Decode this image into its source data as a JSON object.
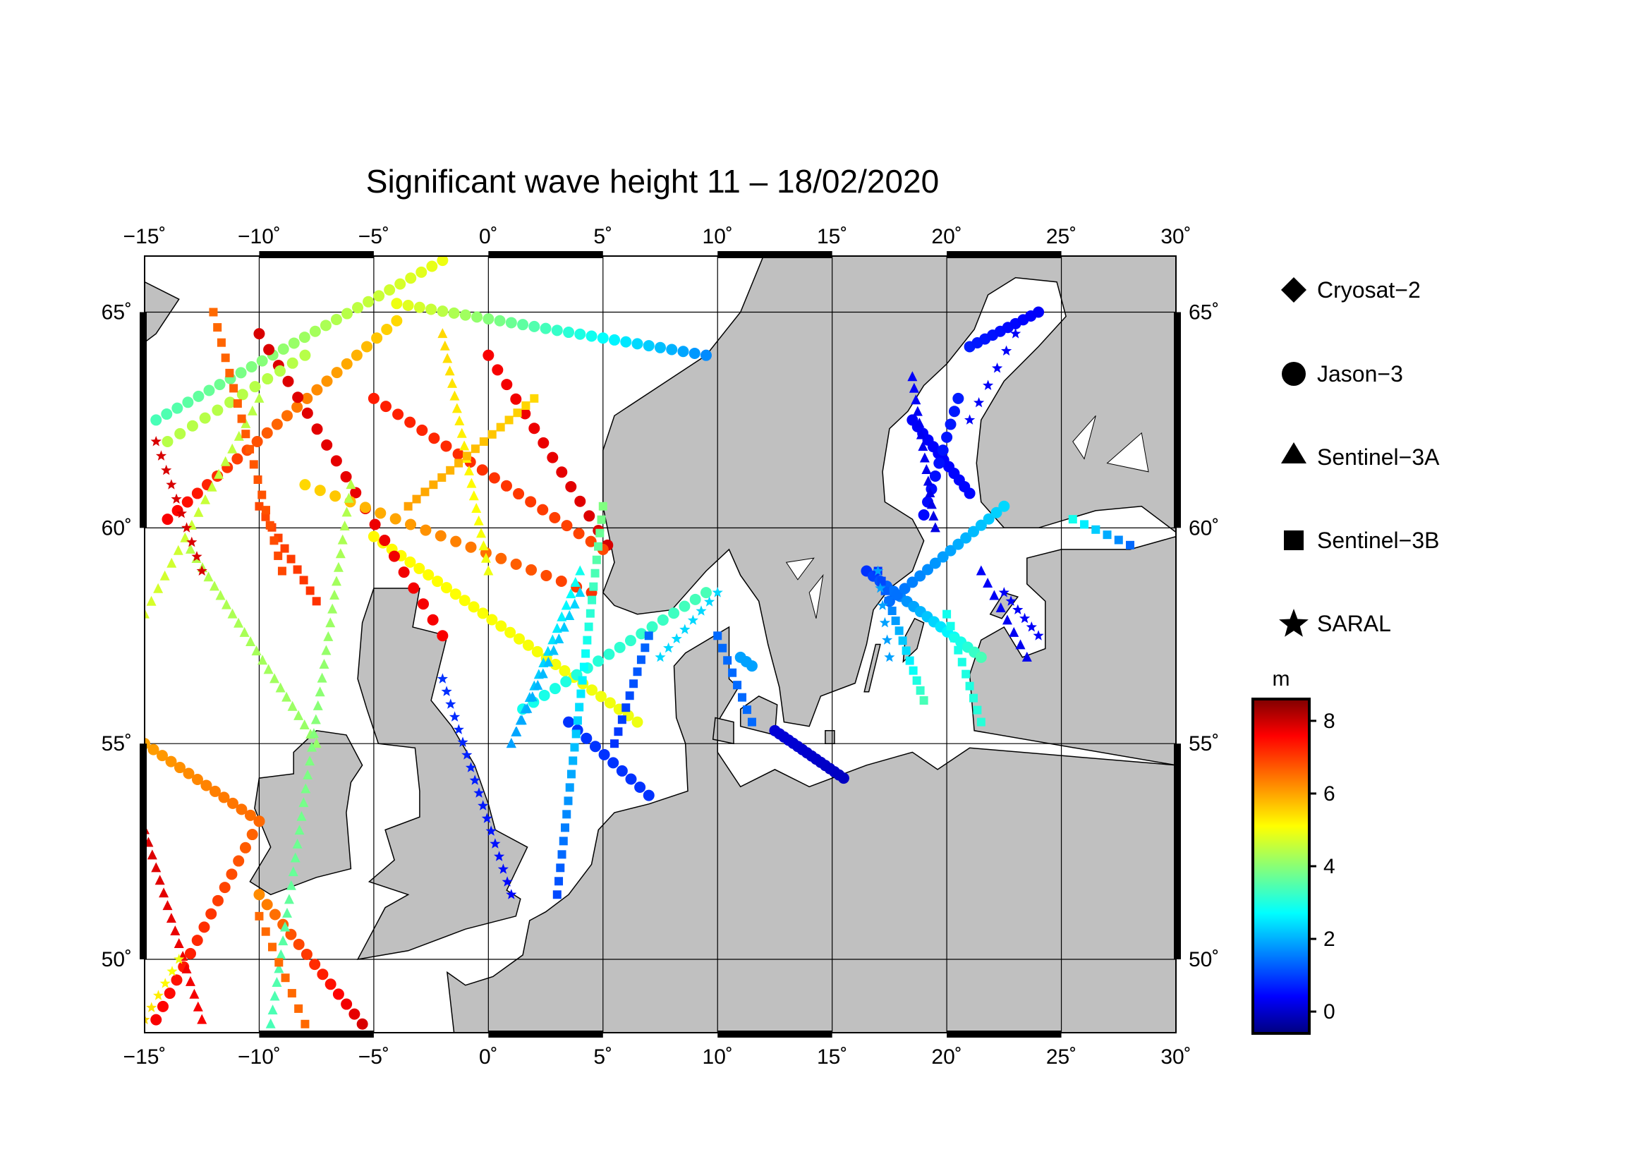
{
  "title": "Significant wave height 11 – 18/02/2020",
  "map": {
    "lon_range": [
      -15,
      30
    ],
    "lat_range": [
      48.3,
      66.3
    ],
    "lon_ticks": [
      -15,
      -10,
      -5,
      0,
      5,
      10,
      15,
      20,
      25,
      30
    ],
    "lon_tick_labels": [
      "−15˚",
      "−10˚",
      "−5˚",
      "0˚",
      "5˚",
      "10˚",
      "15˚",
      "20˚",
      "25˚",
      "30˚"
    ],
    "lat_ticks": [
      50,
      55,
      60,
      65
    ],
    "lat_tick_labels": [
      "50˚",
      "55˚",
      "60˚",
      "65˚"
    ],
    "land_color": "#c0c0c0",
    "sea_color": "#ffffff",
    "grid": true
  },
  "legend": {
    "items": [
      {
        "label": "Cryosat−2",
        "icon": "diamond-icon"
      },
      {
        "label": "Jason−3",
        "icon": "circle-icon"
      },
      {
        "label": "Sentinel−3A",
        "icon": "triangle-icon"
      },
      {
        "label": "Sentinel−3B",
        "icon": "square-icon"
      },
      {
        "label": "SARAL",
        "icon": "star-icon"
      }
    ]
  },
  "colorbar": {
    "unit": "m",
    "min": -0.6,
    "max": 8.6,
    "ticks": [
      0,
      2,
      4,
      6,
      8
    ],
    "tick_labels": [
      "0",
      "2",
      "4",
      "6",
      "8"
    ],
    "colormap": "jet"
  },
  "chart_data": {
    "type": "scatter",
    "title": "Significant wave height 11 – 18/02/2020",
    "value_unit": "m",
    "tracks": [
      {
        "satellite": "Jason-3",
        "start": [
          -15,
          55.0
        ],
        "end": [
          -10,
          53.2
        ],
        "h0": 6.0,
        "h1": 6.5,
        "n": 14
      },
      {
        "satellite": "Jason-3",
        "start": [
          -10,
          53.2
        ],
        "end": [
          -14.5,
          48.6
        ],
        "h0": 6.5,
        "h1": 7.5,
        "n": 16
      },
      {
        "satellite": "Jason-3",
        "start": [
          -10,
          51.5
        ],
        "end": [
          -5.5,
          48.5
        ],
        "h0": 6.2,
        "h1": 7.8,
        "n": 14
      },
      {
        "satellite": "Jason-3",
        "start": [
          -5,
          59.8
        ],
        "end": [
          6.5,
          55.5
        ],
        "h0": 5.2,
        "h1": 5.0,
        "n": 30
      },
      {
        "satellite": "Jason-3",
        "start": [
          -14,
          60.2
        ],
        "end": [
          -4,
          64.8
        ],
        "h0": 7.5,
        "h1": 5.5,
        "n": 24
      },
      {
        "satellite": "Jason-3",
        "start": [
          -4,
          65.2
        ],
        "end": [
          9.5,
          64.0
        ],
        "h0": 5.0,
        "h1": 1.8,
        "n": 28
      },
      {
        "satellite": "Jason-3",
        "start": [
          -14.5,
          62.5
        ],
        "end": [
          -2,
          66.2
        ],
        "h0": 3.5,
        "h1": 5.0,
        "n": 28
      },
      {
        "satellite": "Jason-3",
        "start": [
          -10,
          64.5
        ],
        "end": [
          -2,
          57.5
        ],
        "h0": 7.8,
        "h1": 7.5,
        "n": 20
      },
      {
        "satellite": "Jason-3",
        "start": [
          0,
          64.0
        ],
        "end": [
          5.2,
          59.6
        ],
        "h0": 7.5,
        "h1": 7.8,
        "n": 14
      },
      {
        "satellite": "Jason-3",
        "start": [
          -5,
          63.0
        ],
        "end": [
          5.0,
          59.5
        ],
        "h0": 7.2,
        "h1": 6.8,
        "n": 20
      },
      {
        "satellite": "Jason-3",
        "start": [
          -8,
          61.0
        ],
        "end": [
          4.5,
          58.5
        ],
        "h0": 5.5,
        "h1": 7.0,
        "n": 20
      },
      {
        "satellite": "Jason-3",
        "start": [
          -14,
          62.0
        ],
        "end": [
          -8,
          64.0
        ],
        "h0": 4.5,
        "h1": 4.5,
        "n": 12
      },
      {
        "satellite": "Jason-3",
        "start": [
          1.5,
          55.8
        ],
        "end": [
          9.5,
          58.5
        ],
        "h0": 3.0,
        "h1": 3.5,
        "n": 18
      },
      {
        "satellite": "Jason-3",
        "start": [
          11,
          57.0
        ],
        "end": [
          11.5,
          56.8
        ],
        "h0": 2.0,
        "h1": 2.0,
        "n": 3
      },
      {
        "satellite": "Jason-3",
        "start": [
          3.5,
          55.5
        ],
        "end": [
          7.0,
          53.8
        ],
        "h0": 1.0,
        "h1": 1.0,
        "n": 10
      },
      {
        "satellite": "Jason-3",
        "start": [
          12.5,
          55.3
        ],
        "end": [
          15.5,
          54.2
        ],
        "h0": 0.2,
        "h1": 0.0,
        "n": 16
      },
      {
        "satellite": "Jason-3",
        "start": [
          16.5,
          59.0
        ],
        "end": [
          21.5,
          57.0
        ],
        "h0": 1.0,
        "h1": 3.5,
        "n": 18
      },
      {
        "satellite": "Jason-3",
        "start": [
          17.5,
          58.3
        ],
        "end": [
          22.5,
          60.5
        ],
        "h0": 1.5,
        "h1": 2.5,
        "n": 16
      },
      {
        "satellite": "Jason-3",
        "start": [
          18.5,
          62.5
        ],
        "end": [
          21.0,
          60.8
        ],
        "h0": 0.5,
        "h1": 0.6,
        "n": 12
      },
      {
        "satellite": "Jason-3",
        "start": [
          21.0,
          64.2
        ],
        "end": [
          24.0,
          65.0
        ],
        "h0": 0.8,
        "h1": 0.5,
        "n": 10
      },
      {
        "satellite": "Jason-3",
        "start": [
          19.0,
          60.3
        ],
        "end": [
          20.5,
          63.0
        ],
        "h0": 0.6,
        "h1": 0.8,
        "n": 10
      },
      {
        "satellite": "Sentinel-3A",
        "start": [
          -13,
          59.5
        ],
        "end": [
          -7.5,
          55.0
        ],
        "h0": 4.5,
        "h1": 4.2,
        "n": 22
      },
      {
        "satellite": "Sentinel-3A",
        "start": [
          -15,
          53.0
        ],
        "end": [
          -12.5,
          48.6
        ],
        "h0": 7.8,
        "h1": 7.5,
        "n": 16
      },
      {
        "satellite": "Sentinel-3A",
        "start": [
          -6,
          61.0
        ],
        "end": [
          -9.5,
          48.5
        ],
        "h0": 4.5,
        "h1": 3.5,
        "n": 40
      },
      {
        "satellite": "Sentinel-3A",
        "start": [
          -2,
          64.5
        ],
        "end": [
          0,
          59.0
        ],
        "h0": 5.5,
        "h1": 5.0,
        "n": 20
      },
      {
        "satellite": "Sentinel-3A",
        "start": [
          1,
          55.0
        ],
        "end": [
          4,
          59.0
        ],
        "h0": 2.0,
        "h1": 3.0,
        "n": 16
      },
      {
        "satellite": "Sentinel-3A",
        "start": [
          4.0,
          58.5
        ],
        "end": [
          1.0,
          55.0
        ],
        "h0": 2.5,
        "h1": 2.0,
        "n": 14
      },
      {
        "satellite": "Sentinel-3A",
        "start": [
          -15,
          58.0
        ],
        "end": [
          -10,
          63.0
        ],
        "h0": 4.8,
        "h1": 4.5,
        "n": 18
      },
      {
        "satellite": "Sentinel-3A",
        "start": [
          19.5,
          60.0
        ],
        "end": [
          18.5,
          63.5
        ],
        "h0": 0.3,
        "h1": 0.5,
        "n": 14
      },
      {
        "satellite": "Sentinel-3A",
        "start": [
          21.5,
          59.0
        ],
        "end": [
          23.5,
          57.0
        ],
        "h0": 0.5,
        "h1": 0.4,
        "n": 8
      },
      {
        "satellite": "Sentinel-3B",
        "start": [
          -10,
          60.5
        ],
        "end": [
          -7.5,
          58.3
        ],
        "h0": 6.8,
        "h1": 7.0,
        "n": 10
      },
      {
        "satellite": "Sentinel-3B",
        "start": [
          -12.0,
          65.0
        ],
        "end": [
          -9.0,
          59.0
        ],
        "h0": 6.5,
        "h1": 6.8,
        "n": 18
      },
      {
        "satellite": "Sentinel-3B",
        "start": [
          -10,
          51.0
        ],
        "end": [
          -8.0,
          48.5
        ],
        "h0": 6.5,
        "h1": 6.5,
        "n": 8
      },
      {
        "satellite": "Sentinel-3B",
        "start": [
          5.0,
          60.5
        ],
        "end": [
          3.0,
          51.5
        ],
        "h0": 4.0,
        "h1": 1.2,
        "n": 30
      },
      {
        "satellite": "Sentinel-3B",
        "start": [
          7.0,
          57.5
        ],
        "end": [
          5.5,
          55.0
        ],
        "h0": 1.5,
        "h1": 1.0,
        "n": 10
      },
      {
        "satellite": "Sentinel-3B",
        "start": [
          11.5,
          55.5
        ],
        "end": [
          10.0,
          57.5
        ],
        "h0": 1.5,
        "h1": 1.5,
        "n": 8
      },
      {
        "satellite": "Sentinel-3B",
        "start": [
          17.0,
          59.0
        ],
        "end": [
          19.0,
          56.0
        ],
        "h0": 1.0,
        "h1": 3.5,
        "n": 14
      },
      {
        "satellite": "Sentinel-3B",
        "start": [
          20.0,
          58.0
        ],
        "end": [
          21.5,
          55.5
        ],
        "h0": 3.0,
        "h1": 3.2,
        "n": 10
      },
      {
        "satellite": "Sentinel-3B",
        "start": [
          25.5,
          60.2
        ],
        "end": [
          28.0,
          59.6
        ],
        "h0": 3.0,
        "h1": 1.5,
        "n": 6
      },
      {
        "satellite": "Sentinel-3B",
        "start": [
          -3.5,
          60.5
        ],
        "end": [
          2.0,
          63.0
        ],
        "h0": 6.0,
        "h1": 5.5,
        "n": 16
      },
      {
        "satellite": "SARAL",
        "start": [
          -15,
          48.6
        ],
        "end": [
          -13.5,
          50.0
        ],
        "h0": 5.5,
        "h1": 5.0,
        "n": 6
      },
      {
        "satellite": "SARAL",
        "start": [
          -14.5,
          62.0
        ],
        "end": [
          -12.5,
          59.0
        ],
        "h0": 7.8,
        "h1": 7.8,
        "n": 10
      },
      {
        "satellite": "SARAL",
        "start": [
          -2.0,
          56.5
        ],
        "end": [
          1.0,
          51.5
        ],
        "h0": 1.0,
        "h1": 0.6,
        "n": 18
      },
      {
        "satellite": "SARAL",
        "start": [
          7.5,
          57.0
        ],
        "end": [
          10.0,
          58.5
        ],
        "h0": 2.5,
        "h1": 2.5,
        "n": 8
      },
      {
        "satellite": "SARAL",
        "start": [
          17.5,
          57.0
        ],
        "end": [
          17.0,
          59.0
        ],
        "h0": 2.0,
        "h1": 2.0,
        "n": 6
      },
      {
        "satellite": "SARAL",
        "start": [
          22.5,
          58.5
        ],
        "end": [
          24.0,
          57.5
        ],
        "h0": 0.5,
        "h1": 0.5,
        "n": 6
      },
      {
        "satellite": "SARAL",
        "start": [
          21.0,
          62.5
        ],
        "end": [
          23.0,
          64.5
        ],
        "h0": 0.5,
        "h1": 0.5,
        "n": 6
      }
    ]
  }
}
